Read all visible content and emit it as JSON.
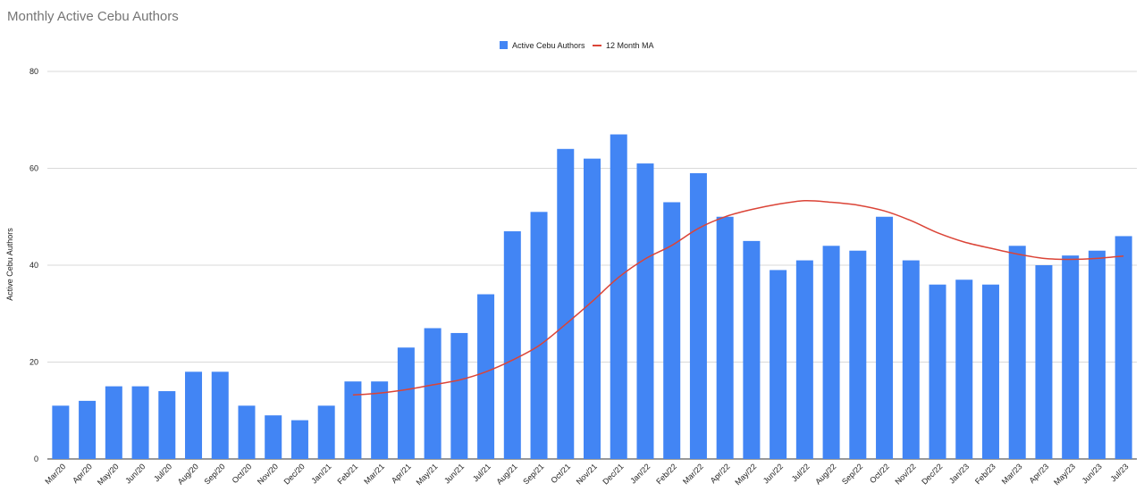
{
  "chart_data": {
    "type": "bar",
    "title": "Monthly Active Cebu Authors",
    "xlabel": "",
    "ylabel": "Active Cebu Authors",
    "ylim": [
      0,
      80
    ],
    "yticks": [
      0,
      20,
      40,
      60,
      80
    ],
    "grid": true,
    "legend_position": "top-center",
    "categories": [
      "Mar/20",
      "Apr/20",
      "May/20",
      "Jun/20",
      "Jul/20",
      "Aug/20",
      "Sep/20",
      "Oct/20",
      "Nov/20",
      "Dec/20",
      "Jan/21",
      "Feb/21",
      "Mar/21",
      "Apr/21",
      "May/21",
      "Jun/21",
      "Jul/21",
      "Aug/21",
      "Sep/21",
      "Oct/21",
      "Nov/21",
      "Dec/21",
      "Jan/22",
      "Feb/22",
      "Mar/22",
      "Apr/22",
      "May/22",
      "Jun/22",
      "Jul/22",
      "Aug/22",
      "Sep/22",
      "Oct/22",
      "Nov/22",
      "Dec/22",
      "Jan/23",
      "Feb/23",
      "Mar/23",
      "Apr/23",
      "May/23",
      "Jun/23",
      "Jul/23"
    ],
    "series": [
      {
        "name": "Active Cebu Authors",
        "kind": "bar",
        "color": "#4285f4",
        "values": [
          11,
          12,
          15,
          15,
          14,
          18,
          18,
          11,
          9,
          8,
          11,
          16,
          16,
          23,
          27,
          26,
          34,
          47,
          51,
          64,
          62,
          67,
          61,
          53,
          59,
          50,
          45,
          39,
          41,
          44,
          43,
          50,
          41,
          36,
          37,
          36,
          44,
          40,
          42,
          43,
          46
        ]
      },
      {
        "name": "12 Month MA",
        "kind": "line",
        "color": "#db4437",
        "values": [
          null,
          null,
          null,
          null,
          null,
          null,
          null,
          null,
          null,
          null,
          null,
          13.2,
          13.6,
          14.3,
          15.3,
          16.3,
          18.0,
          20.4,
          23.4,
          27.8,
          32.5,
          37.5,
          41.3,
          44.1,
          47.6,
          50.0,
          51.5,
          52.6,
          53.3,
          53.0,
          52.4,
          51.2,
          49.2,
          46.7,
          44.8,
          43.5,
          42.3,
          41.4,
          41.2,
          41.4,
          41.9
        ]
      }
    ]
  }
}
